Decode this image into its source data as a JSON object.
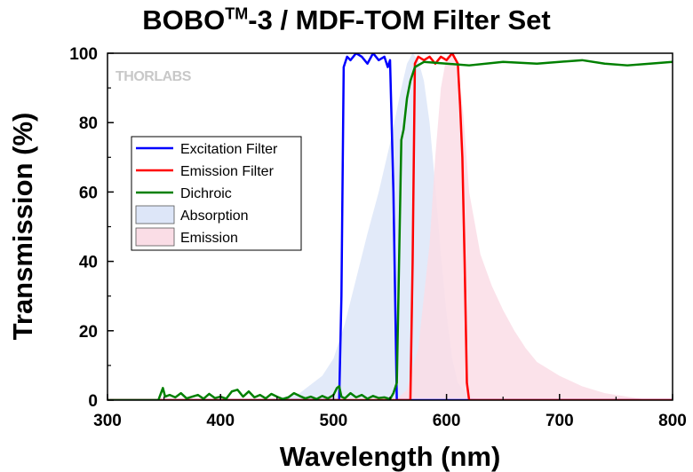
{
  "title": {
    "main": "BOBO",
    "sup": "TM",
    "rest": "-3 / MDF-TOM Filter Set"
  },
  "watermark": "THORLABS",
  "chart_data": {
    "type": "line",
    "xlabel": "Wavelength (nm)",
    "ylabel": "Transmission (%)",
    "xlim": [
      300,
      800
    ],
    "ylim": [
      0,
      100
    ],
    "x_ticks": [
      300,
      400,
      500,
      600,
      700,
      800
    ],
    "y_ticks": [
      0,
      20,
      40,
      60,
      80,
      100
    ],
    "grid": false,
    "legend_position": "upper-left",
    "legend": [
      {
        "label": "Excitation Filter",
        "color": "#0000ff",
        "kind": "line"
      },
      {
        "label": "Emission Filter",
        "color": "#ff0000",
        "kind": "line"
      },
      {
        "label": "Dichroic",
        "color": "#008000",
        "kind": "line"
      },
      {
        "label": "Absorption",
        "color": "#dde6f8",
        "kind": "area"
      },
      {
        "label": "Emission",
        "color": "#fadde6",
        "kind": "area"
      }
    ],
    "series": [
      {
        "name": "Absorption",
        "kind": "area",
        "fill": "#dde6f8",
        "opacity": 0.85,
        "x": [
          430,
          450,
          470,
          490,
          500,
          510,
          520,
          530,
          540,
          550,
          555,
          560,
          565,
          570,
          575,
          580,
          585,
          590,
          595,
          600,
          605,
          610,
          620,
          630
        ],
        "y": [
          0,
          0.5,
          2,
          7,
          12,
          22,
          35,
          48,
          60,
          74,
          82,
          90,
          97,
          100,
          98,
          92,
          80,
          62,
          42,
          25,
          12,
          5,
          1,
          0
        ]
      },
      {
        "name": "Emission",
        "kind": "area",
        "fill": "#fadde6",
        "opacity": 0.85,
        "x": [
          555,
          565,
          575,
          585,
          590,
          595,
          600,
          605,
          610,
          615,
          620,
          630,
          640,
          650,
          660,
          670,
          680,
          700,
          720,
          740,
          760,
          780
        ],
        "y": [
          0,
          3,
          15,
          45,
          70,
          90,
          99,
          100,
          96,
          82,
          60,
          42,
          33,
          26,
          20,
          15,
          11,
          7,
          4,
          2,
          1,
          0
        ]
      },
      {
        "name": "Excitation Filter",
        "kind": "line",
        "color": "#0000ff",
        "x": [
          300,
          505,
          507,
          509,
          512,
          515,
          520,
          525,
          530,
          535,
          540,
          545,
          548,
          550,
          553,
          556,
          560,
          800
        ],
        "y": [
          0,
          0,
          30,
          96,
          99,
          98,
          100,
          99,
          97,
          100,
          98,
          99,
          96,
          98,
          60,
          0,
          0,
          0
        ]
      },
      {
        "name": "Emission Filter",
        "kind": "line",
        "color": "#ff0000",
        "x": [
          300,
          568,
          570,
          572,
          575,
          580,
          585,
          590,
          595,
          600,
          605,
          610,
          612,
          614,
          616,
          618,
          620,
          800
        ],
        "y": [
          0,
          0,
          40,
          97,
          99,
          98,
          99,
          97,
          99,
          98,
          100,
          97,
          85,
          70,
          40,
          5,
          0,
          0
        ]
      },
      {
        "name": "Dichroic",
        "kind": "line",
        "color": "#008000",
        "x": [
          300,
          345,
          349,
          351,
          355,
          360,
          365,
          370,
          375,
          380,
          385,
          390,
          395,
          400,
          405,
          410,
          415,
          420,
          425,
          430,
          435,
          440,
          445,
          450,
          455,
          460,
          465,
          470,
          475,
          480,
          485,
          490,
          495,
          500,
          503,
          505,
          507,
          510,
          515,
          520,
          525,
          530,
          535,
          540,
          545,
          550,
          553,
          556,
          558,
          560,
          562,
          565,
          568,
          572,
          580,
          600,
          620,
          650,
          680,
          700,
          720,
          740,
          760,
          780,
          800
        ],
        "y": [
          0,
          0,
          3.5,
          1,
          1.5,
          0.8,
          2,
          0.5,
          1,
          1.5,
          0.4,
          1.8,
          0.6,
          1,
          0.4,
          2.5,
          3,
          1,
          2.5,
          0.8,
          1.5,
          0.5,
          1.8,
          1,
          0.3,
          0.8,
          2,
          1.2,
          0.5,
          1,
          0.3,
          1.2,
          0.5,
          1.5,
          3.5,
          4,
          1,
          0.5,
          2,
          0.8,
          1.5,
          0.4,
          1.2,
          0.6,
          0.8,
          0.3,
          2,
          5,
          40,
          75,
          78,
          87,
          92,
          96,
          97.5,
          97,
          96.5,
          97.5,
          97,
          97.5,
          98,
          97,
          96.5,
          97,
          97.5
        ]
      }
    ]
  }
}
